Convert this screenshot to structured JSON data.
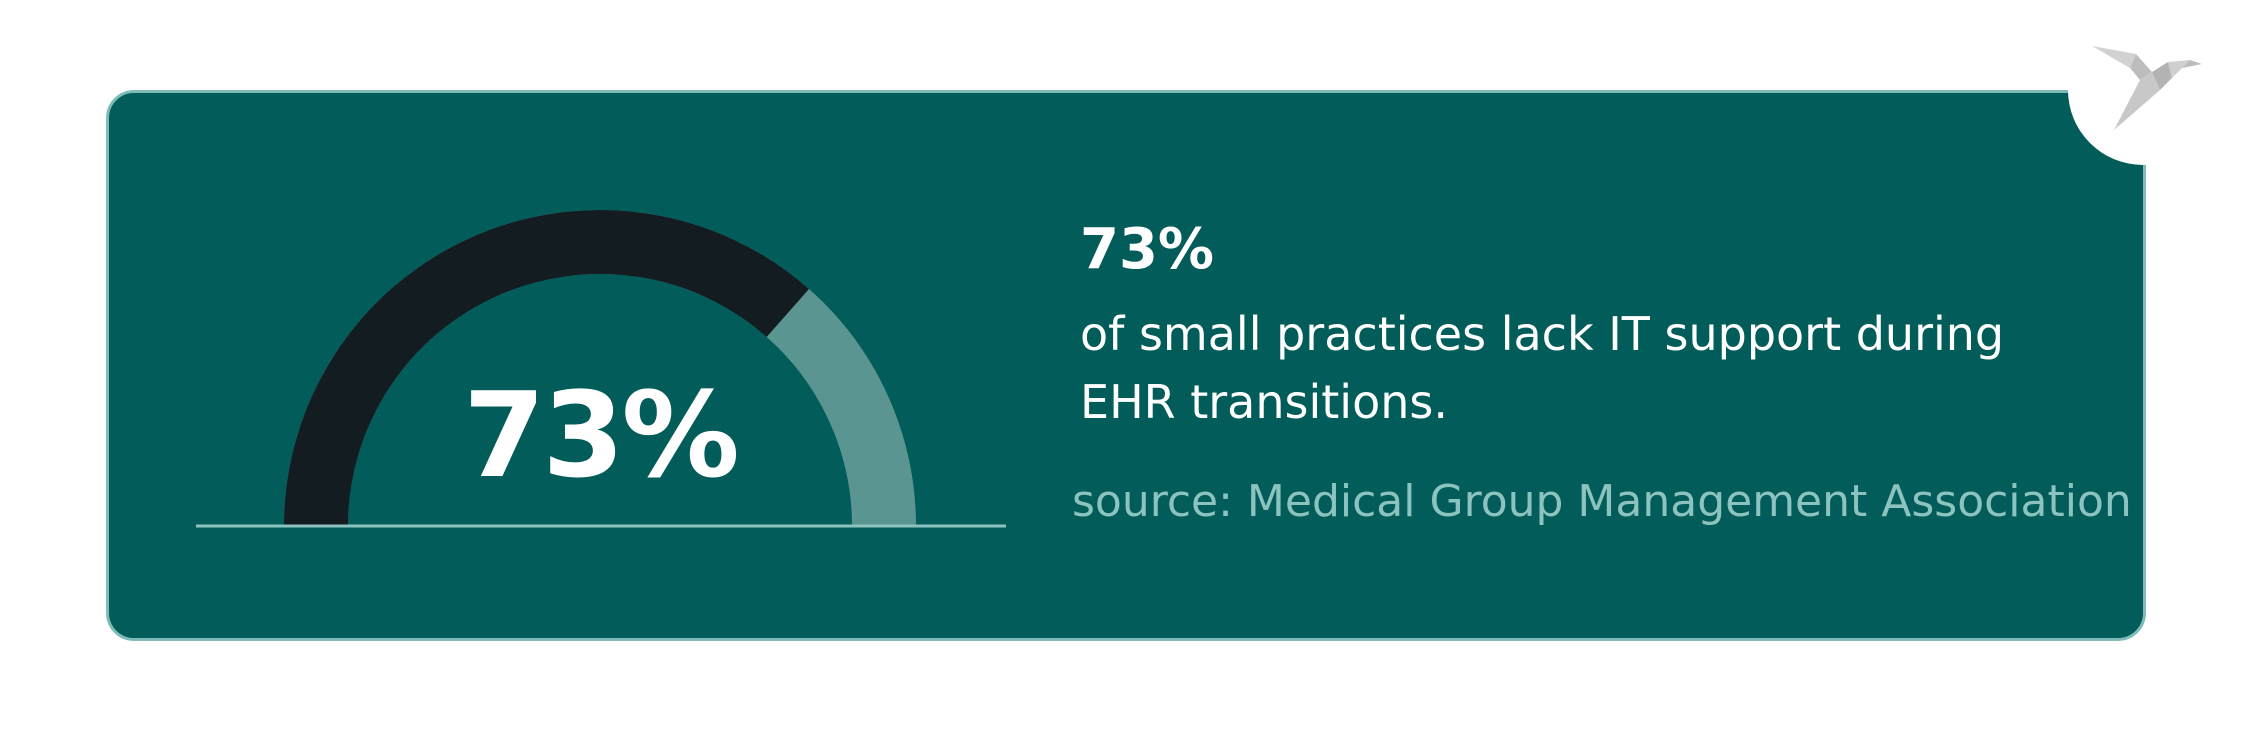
{
  "colors": {
    "card_background": "#025c59",
    "card_border": "#7fbcb8",
    "gauge_filled": "#121c21",
    "gauge_remaining": "#5a9592",
    "baseline": "#8dc3bf",
    "text_primary": "#ffffff",
    "text_source": "#8dc3bf",
    "logo": "#c4c4c4"
  },
  "icons": {
    "logo": "origami-bird-icon"
  },
  "chart_data": {
    "type": "gauge",
    "values": [
      73,
      27
    ],
    "max": 100,
    "center_label": "73%"
  },
  "stat": {
    "value": "73%",
    "description": "of small practices lack IT support during EHR transitions.",
    "source": "source: Medical Group Management Association"
  }
}
